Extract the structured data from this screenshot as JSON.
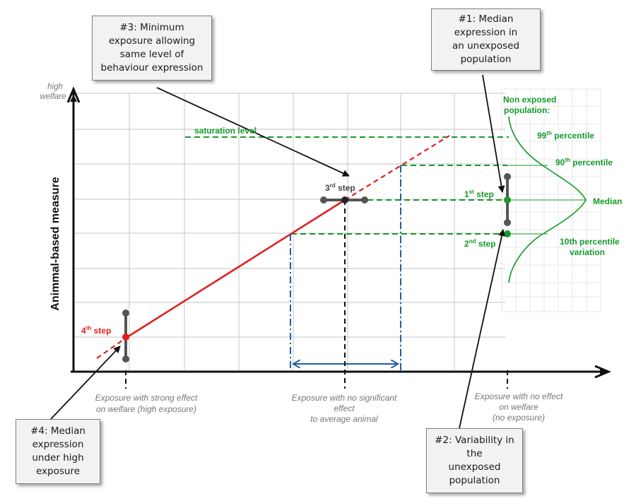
{
  "axes": {
    "y_label": "Animmal-based measure",
    "y_top_label": "high\nwelfare"
  },
  "callouts": {
    "c1": "#1: Median\nexpression in\nan unexposed\npopulation",
    "c2": "#2: Variability in\nthe\nunexposed\npopulation",
    "c3": "#3: Minimum\nexposure allowing\nsame level of\nbehaviour expression",
    "c4": "#4: Median\nexpression\nunder high\nexposure"
  },
  "labels": {
    "saturation": "saturation level",
    "step1": "1",
    "step1_sup": "st",
    "step2": "2",
    "step2_sup": "nd",
    "step3": "3",
    "step3_sup": "rd",
    "step4": "4",
    "step4_sup": "th",
    "step_word": "step",
    "non_exposed_1": "Non exposed",
    "non_exposed_2": "population:",
    "p99": "99",
    "p99_sup": "th",
    "p90": "90",
    "p90_sup": "th",
    "percentile_word": "percentile",
    "median": "Median",
    "p10_1": "10th percentile",
    "p10_2": "variation"
  },
  "x_annotations": {
    "high_exposure": [
      "Exposure with strong effect",
      "on welfare (high exposure)"
    ],
    "no_significant": [
      "Exposure with no significant",
      "effect",
      "to average animal"
    ],
    "no_effect": [
      "Exposure with no effect",
      "on welfare",
      "(no exposure)"
    ]
  },
  "colors": {
    "red": "#e01f1f",
    "green": "#159a2a",
    "blue": "#1f5f9e",
    "dark_gray": "#555555",
    "grid": "#cfcfcf"
  }
}
